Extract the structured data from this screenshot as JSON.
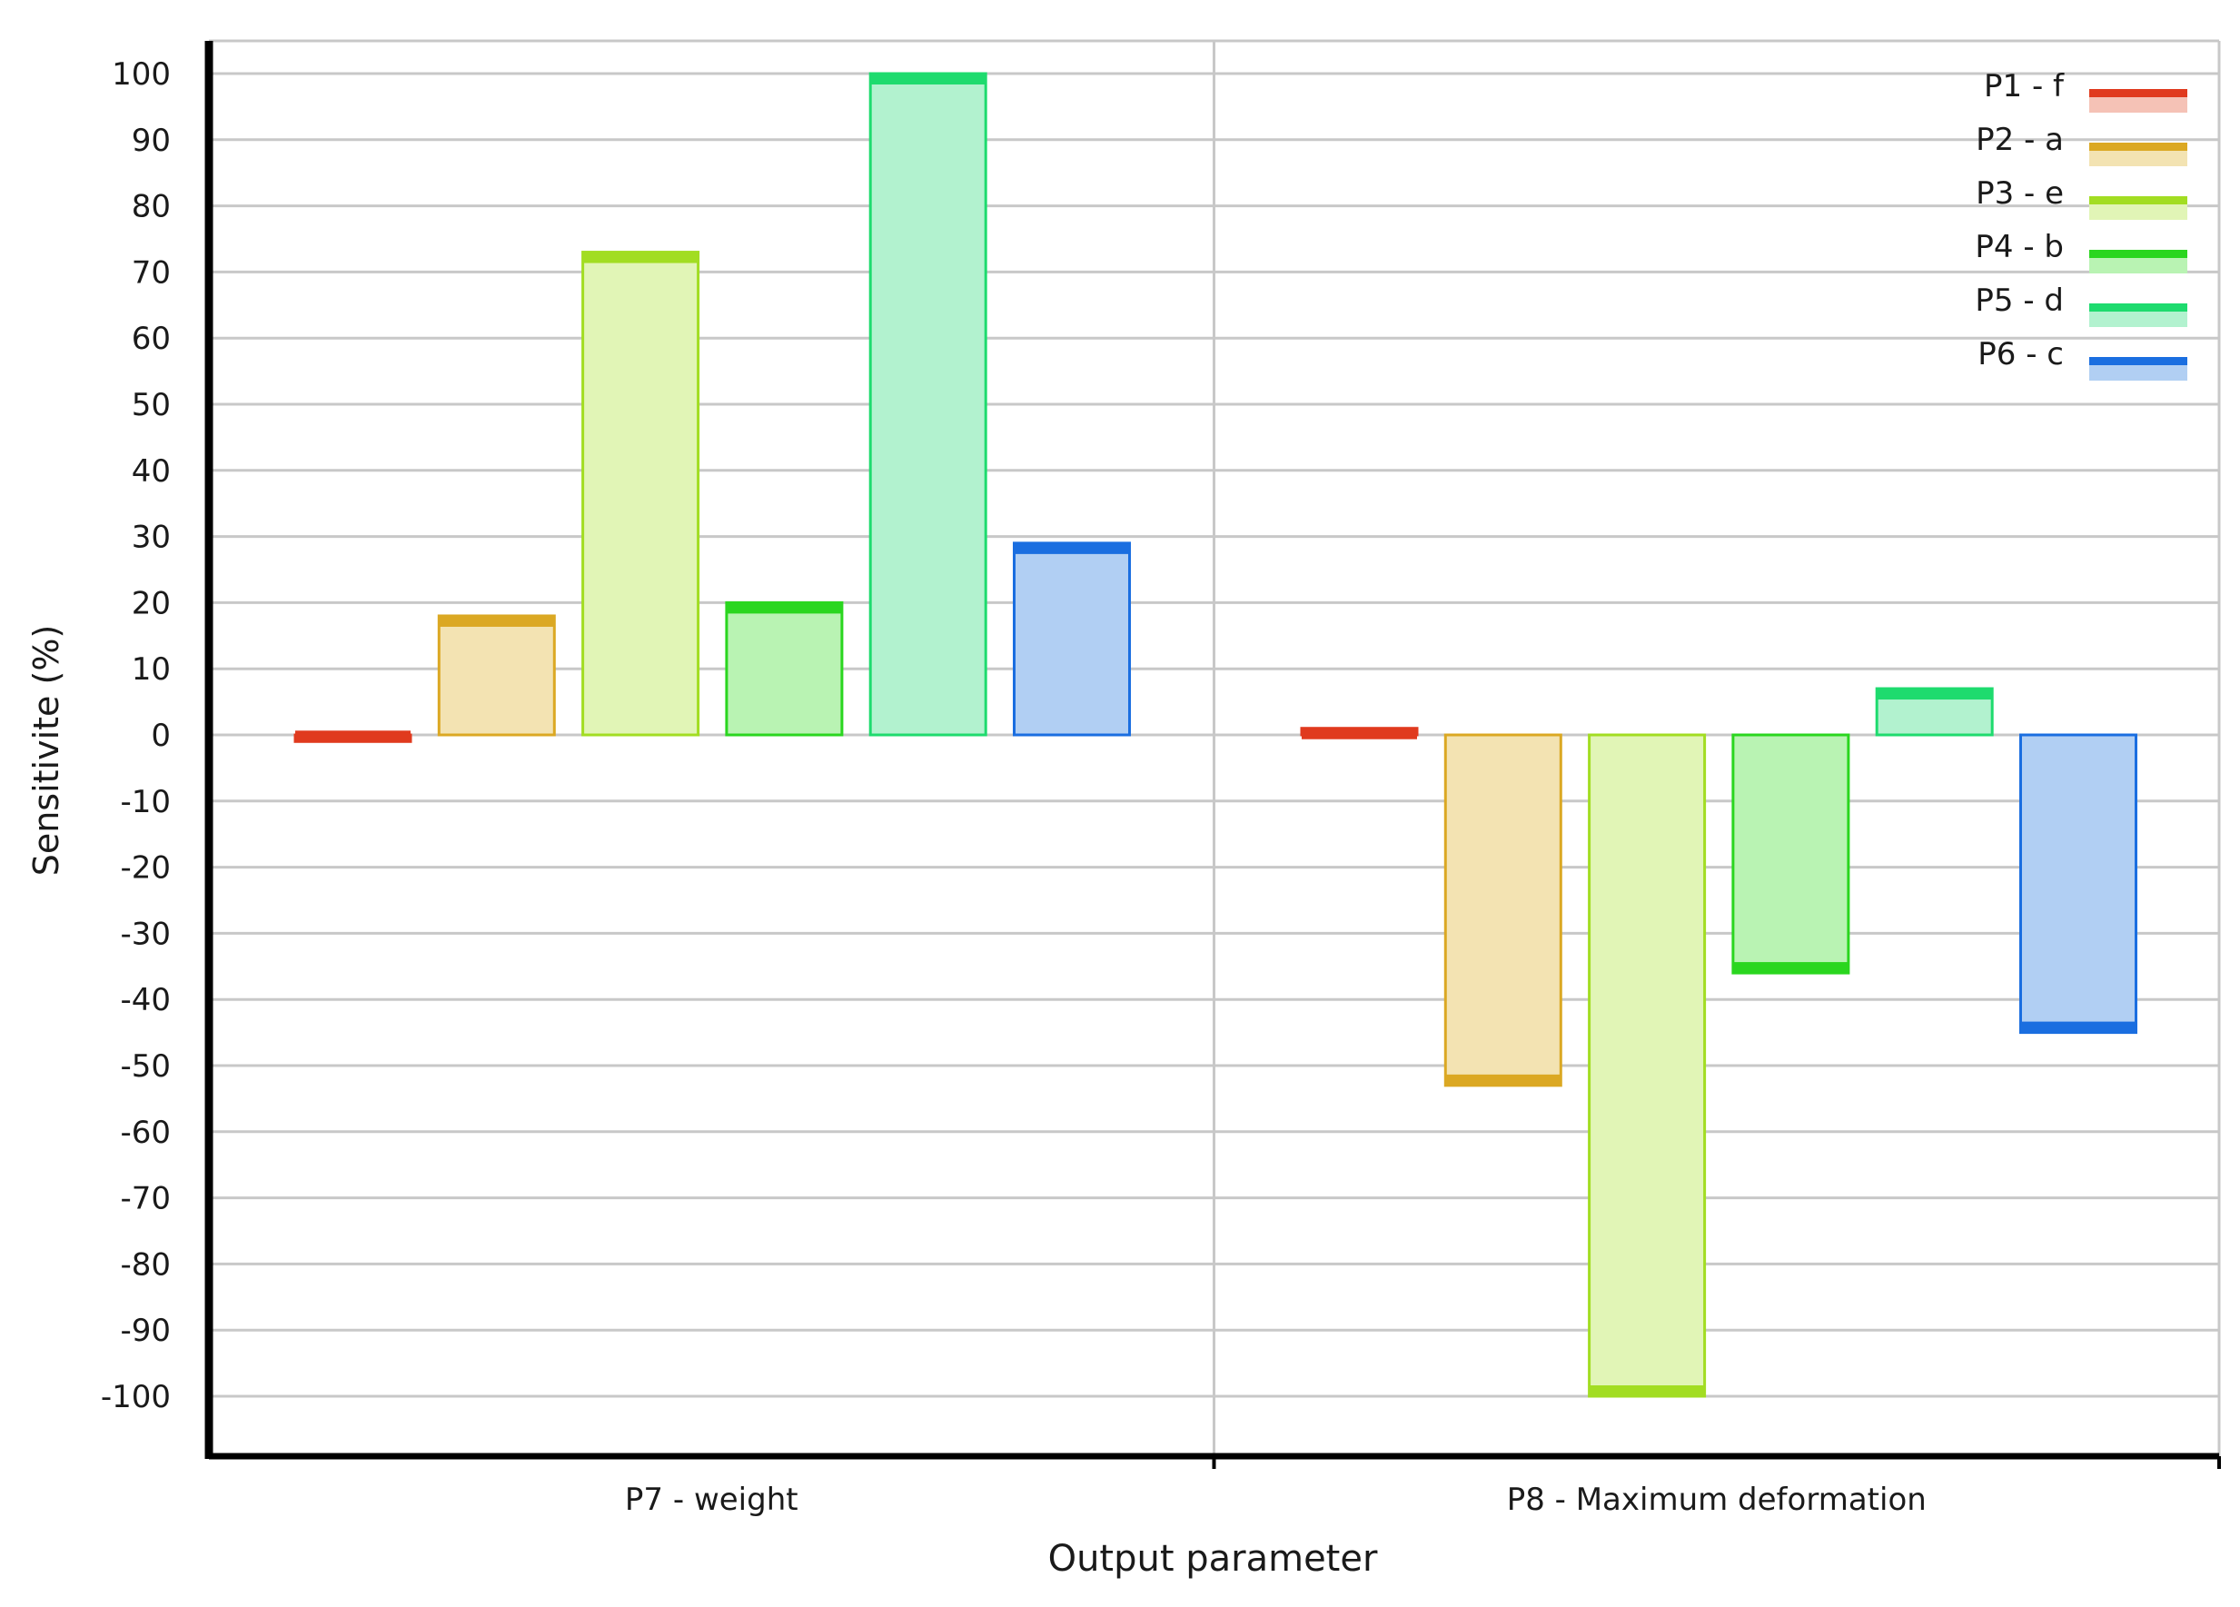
{
  "chart_data": {
    "type": "bar",
    "title": "",
    "xlabel": "Output parameter",
    "ylabel": "Sensitivite (%)",
    "ylim": [
      -110,
      105
    ],
    "yticks": [
      100,
      90,
      80,
      70,
      60,
      50,
      40,
      30,
      20,
      10,
      0,
      -10,
      -20,
      -30,
      -40,
      -50,
      -60,
      -70,
      -80,
      -90,
      -100
    ],
    "grid": true,
    "legend_position": "top-right",
    "categories": [
      "P7 - weight",
      "P8 - Maximum deformation"
    ],
    "series": [
      {
        "name": "P1 - f",
        "color": "#e03a1e",
        "fill": "#f5c2b6",
        "values": [
          -1,
          1
        ]
      },
      {
        "name": "P2 - a",
        "color": "#dba823",
        "fill": "#f3e3b2",
        "values": [
          18,
          -53
        ]
      },
      {
        "name": "P3 - e",
        "color": "#a2dd22",
        "fill": "#e1f5b6",
        "values": [
          73,
          -100
        ]
      },
      {
        "name": "P4 - b",
        "color": "#2ad61f",
        "fill": "#b9f3b3",
        "values": [
          20,
          -36
        ]
      },
      {
        "name": "P5 - d",
        "color": "#1edb6e",
        "fill": "#b2f2cf",
        "values": [
          100,
          7
        ]
      },
      {
        "name": "P6 - c",
        "color": "#1a6ee0",
        "fill": "#b1cff3",
        "values": [
          29,
          -45
        ]
      }
    ]
  }
}
